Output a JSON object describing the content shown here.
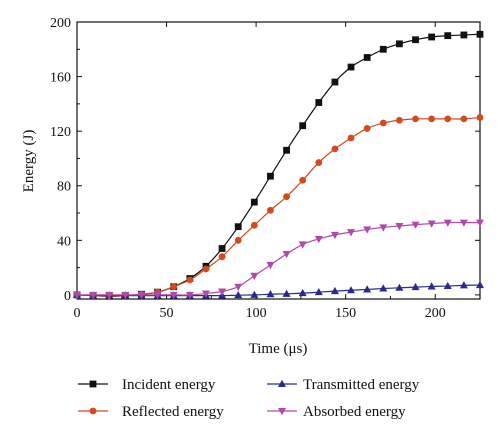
{
  "chart_data": {
    "type": "line",
    "xlabel": "Time (μs)",
    "ylabel": "Energy (J)",
    "xlim": [
      0,
      225
    ],
    "ylim": [
      -3,
      200
    ],
    "xticks": [
      0,
      50,
      100,
      150,
      200
    ],
    "yticks": [
      0,
      40,
      80,
      120,
      160,
      200
    ],
    "grid": false,
    "legend_position": "bottom",
    "series": [
      {
        "name": "Incident energy",
        "color": "#111111",
        "marker": "square",
        "x": [
          0,
          9,
          18,
          27,
          36,
          45,
          54,
          63,
          72,
          81,
          90,
          99,
          108,
          117,
          126,
          135,
          144,
          153,
          162,
          171,
          180,
          189,
          198,
          207,
          216,
          225
        ],
        "y": [
          0,
          -0.5,
          -1,
          -0.5,
          0.5,
          2,
          6,
          12,
          21,
          34,
          50,
          68,
          87,
          106,
          124,
          141,
          156,
          167,
          174,
          180,
          184,
          187,
          189,
          190,
          190.5,
          191
        ]
      },
      {
        "name": "Reflected energy",
        "color": "#d24a1e",
        "marker": "circle",
        "x": [
          0,
          9,
          18,
          27,
          36,
          45,
          54,
          63,
          72,
          81,
          90,
          99,
          108,
          117,
          126,
          135,
          144,
          153,
          162,
          171,
          180,
          189,
          198,
          207,
          216,
          225
        ],
        "y": [
          0,
          -0.5,
          -1,
          -0.5,
          0.5,
          2,
          6,
          11,
          19,
          28,
          40,
          51,
          62,
          72,
          84,
          97,
          107,
          115,
          122,
          126,
          128,
          129,
          129,
          129,
          129,
          130
        ]
      },
      {
        "name": "Transmitted energy",
        "color": "#2b2a8c",
        "marker": "triangle-up",
        "x": [
          0,
          9,
          18,
          27,
          36,
          45,
          54,
          63,
          72,
          81,
          90,
          99,
          108,
          117,
          126,
          135,
          144,
          153,
          162,
          171,
          180,
          189,
          198,
          207,
          216,
          225
        ],
        "y": [
          0,
          -0.5,
          -0.5,
          -0.5,
          -0.5,
          -0.5,
          -0.5,
          -0.5,
          -0.5,
          -0.5,
          -0.2,
          0,
          0.5,
          0.8,
          1.3,
          2,
          2.8,
          3.4,
          4,
          4.7,
          5.2,
          5.7,
          6.2,
          6.5,
          7,
          7.2
        ]
      },
      {
        "name": "Absorbed energy",
        "color": "#b04aa9",
        "marker": "triangle-down",
        "x": [
          0,
          9,
          18,
          27,
          36,
          45,
          54,
          63,
          72,
          81,
          90,
          99,
          108,
          117,
          126,
          135,
          144,
          153,
          162,
          171,
          180,
          189,
          198,
          207,
          216,
          225
        ],
        "y": [
          0,
          0,
          0,
          0,
          0,
          0,
          0,
          0,
          1,
          2.5,
          6,
          14,
          22,
          30,
          37,
          41,
          44,
          46,
          48,
          49.5,
          50.5,
          51.5,
          52.3,
          53,
          53,
          53
        ]
      }
    ]
  }
}
